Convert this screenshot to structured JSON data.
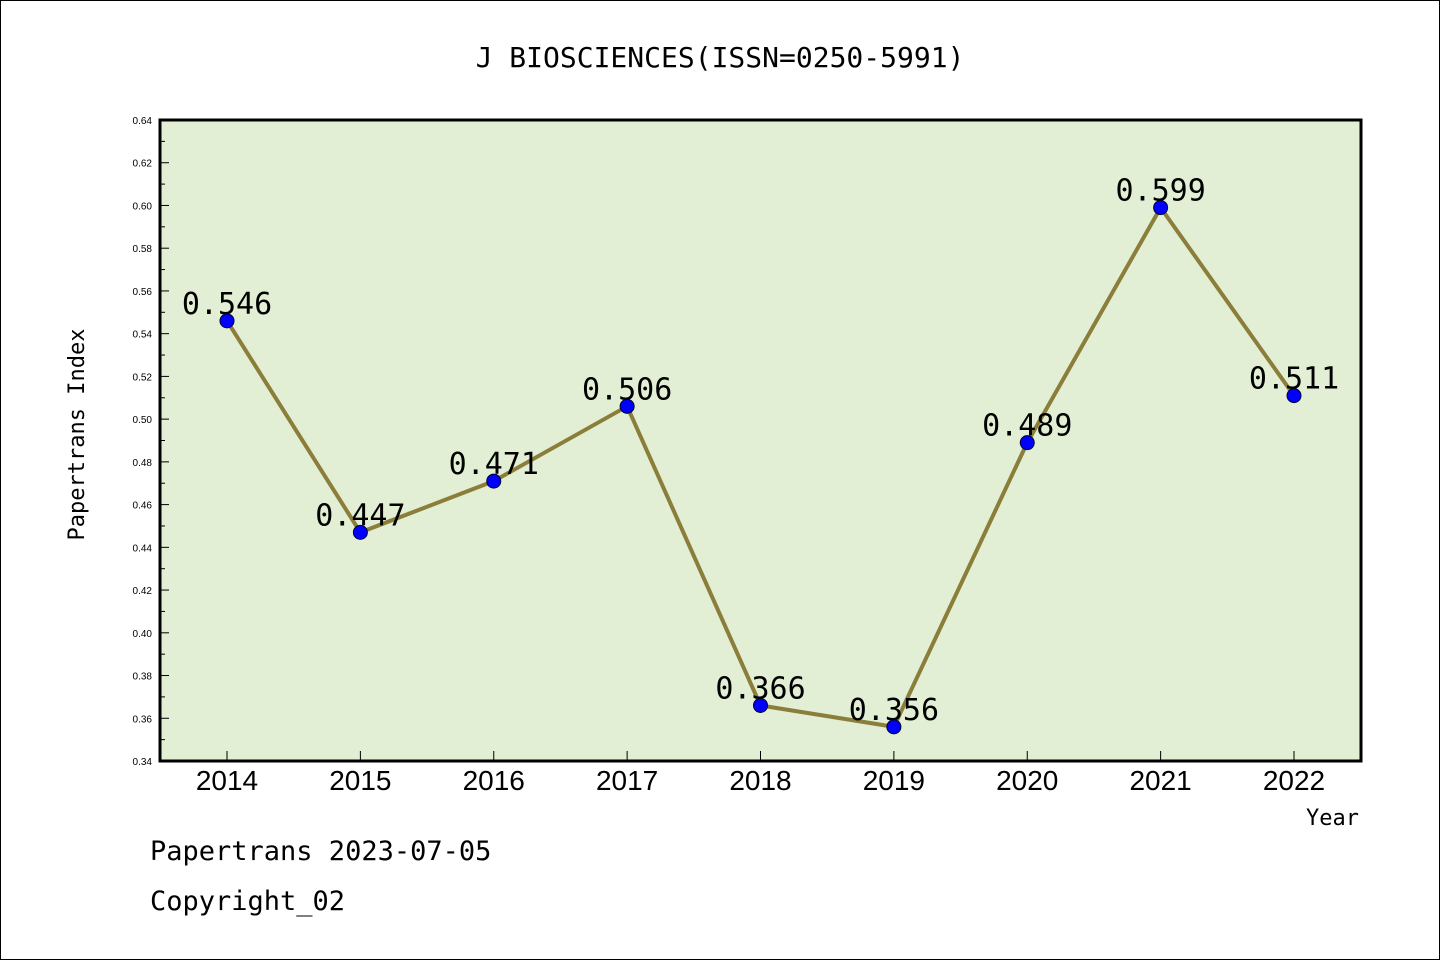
{
  "chart_data": {
    "type": "line",
    "title": "J BIOSCIENCES(ISSN=0250-5991)",
    "xlabel": "Year",
    "ylabel": "Papertrans Index",
    "x": [
      "2014",
      "2015",
      "2016",
      "2017",
      "2018",
      "2019",
      "2020",
      "2021",
      "2022"
    ],
    "values": [
      0.546,
      0.447,
      0.471,
      0.506,
      0.366,
      0.356,
      0.489,
      0.599,
      0.511
    ],
    "data_labels": [
      "0.546",
      "0.447",
      "0.471",
      "0.506",
      "0.366",
      "0.356",
      "0.489",
      "0.599",
      "0.511"
    ],
    "ylim": [
      0.34,
      0.64
    ],
    "yticks": [
      "0.34",
      "0.36",
      "0.38",
      "0.40",
      "0.42",
      "0.44",
      "0.46",
      "0.48",
      "0.50",
      "0.52",
      "0.54",
      "0.56",
      "0.58",
      "0.60",
      "0.62",
      "0.64"
    ],
    "grid": false,
    "colors": {
      "plot_background": "#e2efd5",
      "line": "#8b7d3a",
      "marker": "#0000ff"
    }
  },
  "footer": {
    "line1": "Papertrans 2023-07-05",
    "line2": "Copyright_02"
  }
}
